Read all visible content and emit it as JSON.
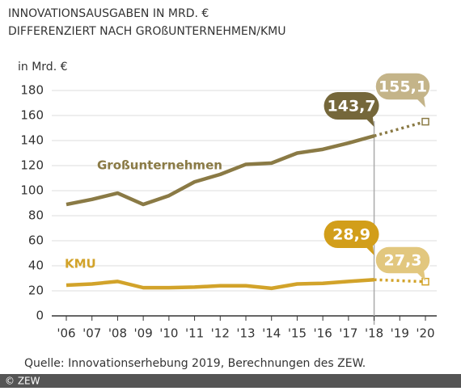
{
  "chart_data": {
    "type": "line",
    "title": "INNOVATIONSAUSGABEN IN MRD. €",
    "subtitle": "DIFFERENZIERT NACH GROßUNTERNEHMEN/KMU",
    "y_label": "in Mrd. €",
    "source": "Quelle: Innovationserhebung 2019, Berechnungen des ZEW.",
    "copyright": "© ZEW",
    "categories": [
      "'06",
      "'07",
      "'08",
      "'09",
      "'10",
      "'11",
      "'12",
      "'13",
      "'14",
      "'15",
      "'16",
      "'17",
      "'18",
      "'19",
      "'20"
    ],
    "dashed_after": "'18",
    "series": [
      {
        "name": "Großunternehmen",
        "color": "#8a7a45",
        "bubble_color": "#75673a",
        "forecast_bubble_color": "#c4b489",
        "values": [
          89,
          93,
          98,
          89,
          96,
          107,
          113,
          121,
          122,
          130,
          133,
          138,
          143.7,
          149.4,
          155.1
        ],
        "value_labels": [
          null,
          null,
          null,
          null,
          null,
          null,
          null,
          null,
          null,
          null,
          null,
          null,
          "143,7",
          null,
          "155,1"
        ]
      },
      {
        "name": "KMU",
        "color": "#d2a32a",
        "bubble_color": "#d29e1a",
        "forecast_bubble_color": "#e2c77e",
        "values": [
          24.5,
          25.5,
          27.5,
          22.5,
          22.5,
          23,
          24,
          24,
          22,
          25.5,
          26,
          27.5,
          28.9,
          28.1,
          27.3
        ],
        "value_labels": [
          null,
          null,
          null,
          null,
          null,
          null,
          null,
          null,
          null,
          null,
          null,
          null,
          "28,9",
          null,
          "27,3"
        ]
      }
    ],
    "ylim": [
      0,
      180
    ],
    "yticks": [
      0,
      20,
      40,
      60,
      80,
      100,
      120,
      140,
      160,
      180
    ],
    "grid": true
  }
}
